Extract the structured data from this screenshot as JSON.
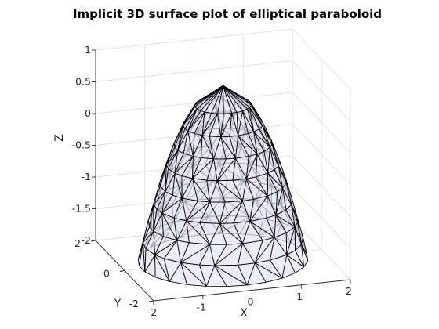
{
  "chart_data": {
    "type": "surface3d",
    "title": "Implicit 3D surface plot of elliptical paraboloid",
    "xlabel": "X",
    "ylabel": "Y",
    "zlabel": "Z",
    "xlim": [
      -2,
      2
    ],
    "ylim": [
      -2,
      2
    ],
    "zlim": [
      -2,
      1
    ],
    "xticks": [
      "-2",
      "-1",
      "0",
      "1",
      "2"
    ],
    "yticks": [
      "-2",
      "0",
      "2"
    ],
    "zticks": [
      "-2",
      "-1.5",
      "-1",
      "-0.5",
      "0",
      "0.5",
      "1"
    ],
    "grid": true,
    "surface": {
      "equation_shape": "z = 0.75 - (x^2 + y^2)",
      "z_range": [
        -2,
        0.75
      ],
      "face_color": "#e6e6f5",
      "edge_color": "#000000",
      "face_alpha": 0.7
    }
  }
}
